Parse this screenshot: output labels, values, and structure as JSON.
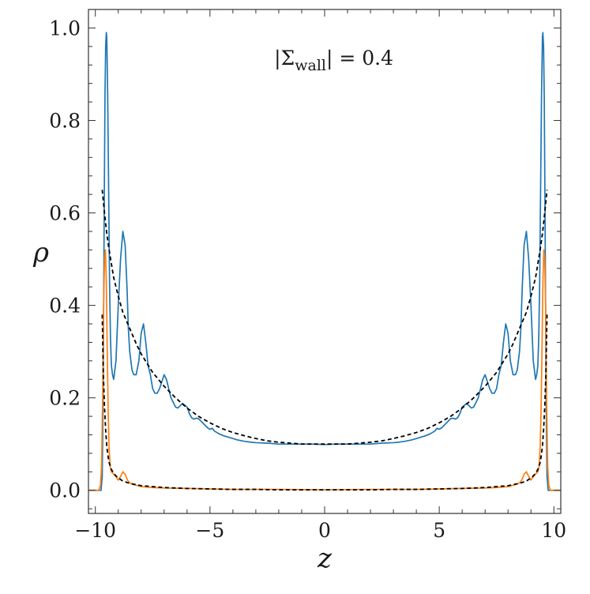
{
  "chart_data": {
    "type": "line",
    "xlabel": "z",
    "ylabel": "ρ",
    "xlim": [
      -10.3,
      10.3
    ],
    "ylim": [
      -0.05,
      1.04
    ],
    "xticks": [
      -10,
      -5,
      0,
      5,
      10
    ],
    "xtick_labels": [
      "−10",
      "−5",
      "0",
      "5",
      "10"
    ],
    "yticks": [
      0.0,
      0.2,
      0.4,
      0.6,
      0.8,
      1.0
    ],
    "ytick_labels": [
      "0.0",
      "0.2",
      "0.4",
      "0.6",
      "0.8",
      "1.0"
    ],
    "annotation": {
      "prefix": "|Σ",
      "subscript": "wall",
      "suffix": "| = 0.4",
      "x": -2.2,
      "y": 0.92
    },
    "grid": false,
    "series": [
      {
        "color": "#1f77b4",
        "style": "solid",
        "x": [
          -10.3,
          -10.0,
          -9.85,
          -9.75,
          -9.7,
          -9.66,
          -9.62,
          -9.58,
          -9.55,
          -9.52,
          -9.5,
          -9.46,
          -9.42,
          -9.38,
          -9.34,
          -9.3,
          -9.25,
          -9.2,
          -9.1,
          -9.0,
          -8.9,
          -8.8,
          -8.7,
          -8.62,
          -8.56,
          -8.5,
          -8.45,
          -8.4,
          -8.32,
          -8.22,
          -8.1,
          -8.0,
          -7.9,
          -7.8,
          -7.7,
          -7.6,
          -7.5,
          -7.4,
          -7.3,
          -7.2,
          -7.0,
          -6.9,
          -6.8,
          -6.7,
          -6.6,
          -6.5,
          -6.4,
          -6.2,
          -6.0,
          -5.9,
          -5.8,
          -5.7,
          -5.6,
          -5.5,
          -5.3,
          -5.1,
          -5.0,
          -4.9,
          -4.8,
          -4.6,
          -4.4,
          -4.2,
          -4.0,
          -3.8,
          -3.5,
          -3.2,
          -3.0,
          -2.5,
          -2.0,
          -1.5,
          -1.0,
          -0.5,
          0.0,
          0.5,
          1.0,
          1.5,
          2.0,
          2.5,
          3.0,
          3.2,
          3.5,
          3.8,
          4.0,
          4.2,
          4.4,
          4.6,
          4.8,
          4.9,
          5.0,
          5.1,
          5.3,
          5.5,
          5.6,
          5.7,
          5.8,
          5.9,
          6.0,
          6.2,
          6.4,
          6.5,
          6.6,
          6.7,
          6.8,
          6.9,
          7.0,
          7.2,
          7.3,
          7.4,
          7.5,
          7.6,
          7.7,
          7.8,
          7.9,
          8.0,
          8.1,
          8.22,
          8.32,
          8.4,
          8.45,
          8.5,
          8.56,
          8.62,
          8.7,
          8.8,
          8.9,
          9.0,
          9.1,
          9.2,
          9.25,
          9.3,
          9.34,
          9.38,
          9.42,
          9.46,
          9.5,
          9.52,
          9.55,
          9.58,
          9.62,
          9.66,
          9.7,
          9.75,
          9.85,
          10.0,
          10.3
        ],
        "y": [
          0.0,
          0.0,
          0.0,
          0.0,
          0.03,
          0.2,
          0.55,
          0.85,
          0.96,
          0.99,
          0.98,
          0.85,
          0.65,
          0.45,
          0.33,
          0.27,
          0.25,
          0.24,
          0.28,
          0.4,
          0.5,
          0.56,
          0.53,
          0.44,
          0.35,
          0.3,
          0.28,
          0.26,
          0.25,
          0.25,
          0.28,
          0.34,
          0.36,
          0.32,
          0.27,
          0.25,
          0.22,
          0.21,
          0.21,
          0.22,
          0.25,
          0.24,
          0.22,
          0.2,
          0.19,
          0.18,
          0.178,
          0.188,
          0.18,
          0.166,
          0.157,
          0.154,
          0.156,
          0.155,
          0.145,
          0.135,
          0.132,
          0.134,
          0.128,
          0.122,
          0.118,
          0.115,
          0.112,
          0.109,
          0.106,
          0.104,
          0.103,
          0.102,
          0.1,
          0.1,
          0.1,
          0.1,
          0.099,
          0.1,
          0.1,
          0.1,
          0.1,
          0.102,
          0.103,
          0.104,
          0.106,
          0.109,
          0.112,
          0.115,
          0.118,
          0.122,
          0.128,
          0.134,
          0.132,
          0.135,
          0.145,
          0.155,
          0.156,
          0.154,
          0.157,
          0.166,
          0.18,
          0.188,
          0.178,
          0.18,
          0.19,
          0.2,
          0.22,
          0.24,
          0.25,
          0.22,
          0.21,
          0.21,
          0.22,
          0.25,
          0.27,
          0.32,
          0.36,
          0.34,
          0.28,
          0.25,
          0.25,
          0.26,
          0.28,
          0.3,
          0.35,
          0.44,
          0.53,
          0.56,
          0.5,
          0.4,
          0.28,
          0.24,
          0.25,
          0.27,
          0.33,
          0.45,
          0.65,
          0.85,
          0.98,
          0.99,
          0.96,
          0.85,
          0.55,
          0.2,
          0.03,
          0.0,
          0.0,
          0.0,
          0.0
        ]
      },
      {
        "color": "#ff7f0e",
        "style": "solid",
        "x": [
          -10.3,
          -10.0,
          -9.85,
          -9.78,
          -9.73,
          -9.68,
          -9.64,
          -9.6,
          -9.56,
          -9.52,
          -9.48,
          -9.44,
          -9.4,
          -9.35,
          -9.3,
          -9.2,
          -9.1,
          -9.0,
          -8.9,
          -8.8,
          -8.7,
          -8.6,
          -8.5,
          -8.3,
          -8.0,
          -7.5,
          -7.0,
          -6.0,
          -5.0,
          -4.0,
          -3.0,
          -2.0,
          0.0,
          2.0,
          3.0,
          4.0,
          5.0,
          6.0,
          7.0,
          7.5,
          8.0,
          8.3,
          8.5,
          8.6,
          8.7,
          8.8,
          8.9,
          9.0,
          9.1,
          9.2,
          9.3,
          9.35,
          9.4,
          9.44,
          9.48,
          9.52,
          9.56,
          9.6,
          9.64,
          9.68,
          9.73,
          9.78,
          9.85,
          10.0,
          10.3
        ],
        "y": [
          0.0,
          0.0,
          0.0,
          0.01,
          0.05,
          0.2,
          0.4,
          0.5,
          0.52,
          0.45,
          0.3,
          0.17,
          0.09,
          0.05,
          0.04,
          0.035,
          0.03,
          0.022,
          0.03,
          0.04,
          0.035,
          0.022,
          0.016,
          0.012,
          0.008,
          0.006,
          0.005,
          0.004,
          0.003,
          0.002,
          0.002,
          0.002,
          0.001,
          0.002,
          0.002,
          0.002,
          0.003,
          0.004,
          0.005,
          0.006,
          0.008,
          0.012,
          0.016,
          0.022,
          0.035,
          0.04,
          0.03,
          0.022,
          0.03,
          0.035,
          0.04,
          0.05,
          0.09,
          0.17,
          0.3,
          0.45,
          0.52,
          0.5,
          0.4,
          0.2,
          0.05,
          0.01,
          0.0,
          0.0,
          0.0
        ]
      },
      {
        "color": "#000000",
        "style": "dashed",
        "x": [
          -9.7,
          -9.6,
          -9.5,
          -9.4,
          -9.2,
          -9.0,
          -8.8,
          -8.5,
          -8.2,
          -8.0,
          -7.5,
          -7.0,
          -6.5,
          -6.0,
          -5.5,
          -5.0,
          -4.5,
          -4.0,
          -3.5,
          -3.0,
          -2.5,
          -2.0,
          -1.5,
          -1.0,
          -0.5,
          0.0,
          0.5,
          1.0,
          1.5,
          2.0,
          2.5,
          3.0,
          3.5,
          4.0,
          4.5,
          5.0,
          5.5,
          6.0,
          6.5,
          7.0,
          7.5,
          8.0,
          8.2,
          8.5,
          8.8,
          9.0,
          9.2,
          9.4,
          9.5,
          9.6,
          9.7
        ],
        "y": [
          0.65,
          0.6,
          0.555,
          0.52,
          0.46,
          0.42,
          0.385,
          0.35,
          0.315,
          0.295,
          0.255,
          0.225,
          0.2,
          0.178,
          0.16,
          0.146,
          0.134,
          0.125,
          0.118,
          0.112,
          0.107,
          0.104,
          0.102,
          0.1,
          0.1,
          0.1,
          0.1,
          0.1,
          0.102,
          0.104,
          0.107,
          0.112,
          0.118,
          0.125,
          0.134,
          0.146,
          0.16,
          0.178,
          0.2,
          0.225,
          0.255,
          0.295,
          0.315,
          0.35,
          0.385,
          0.42,
          0.46,
          0.52,
          0.555,
          0.6,
          0.65
        ]
      },
      {
        "color": "#000000",
        "style": "dashed",
        "x": [
          -9.7,
          -9.65,
          -9.6,
          -9.55,
          -9.5,
          -9.45,
          -9.4,
          -9.3,
          -9.2,
          -9.1,
          -9.0,
          -8.8,
          -8.5,
          -8.0,
          -7.5,
          -7.0,
          -6.0,
          -5.0,
          -4.0,
          -3.0,
          -2.0,
          -1.0,
          0.0,
          1.0,
          2.0,
          3.0,
          4.0,
          5.0,
          6.0,
          7.0,
          7.5,
          8.0,
          8.5,
          8.8,
          9.0,
          9.1,
          9.2,
          9.3,
          9.4,
          9.45,
          9.5,
          9.55,
          9.6,
          9.65,
          9.7
        ],
        "y": [
          0.38,
          0.25,
          0.18,
          0.13,
          0.095,
          0.075,
          0.06,
          0.045,
          0.037,
          0.031,
          0.027,
          0.02,
          0.015,
          0.01,
          0.008,
          0.006,
          0.004,
          0.003,
          0.002,
          0.002,
          0.001,
          0.001,
          0.001,
          0.001,
          0.001,
          0.002,
          0.002,
          0.003,
          0.004,
          0.006,
          0.008,
          0.01,
          0.015,
          0.02,
          0.027,
          0.031,
          0.037,
          0.045,
          0.06,
          0.075,
          0.095,
          0.13,
          0.18,
          0.25,
          0.38
        ]
      }
    ]
  }
}
